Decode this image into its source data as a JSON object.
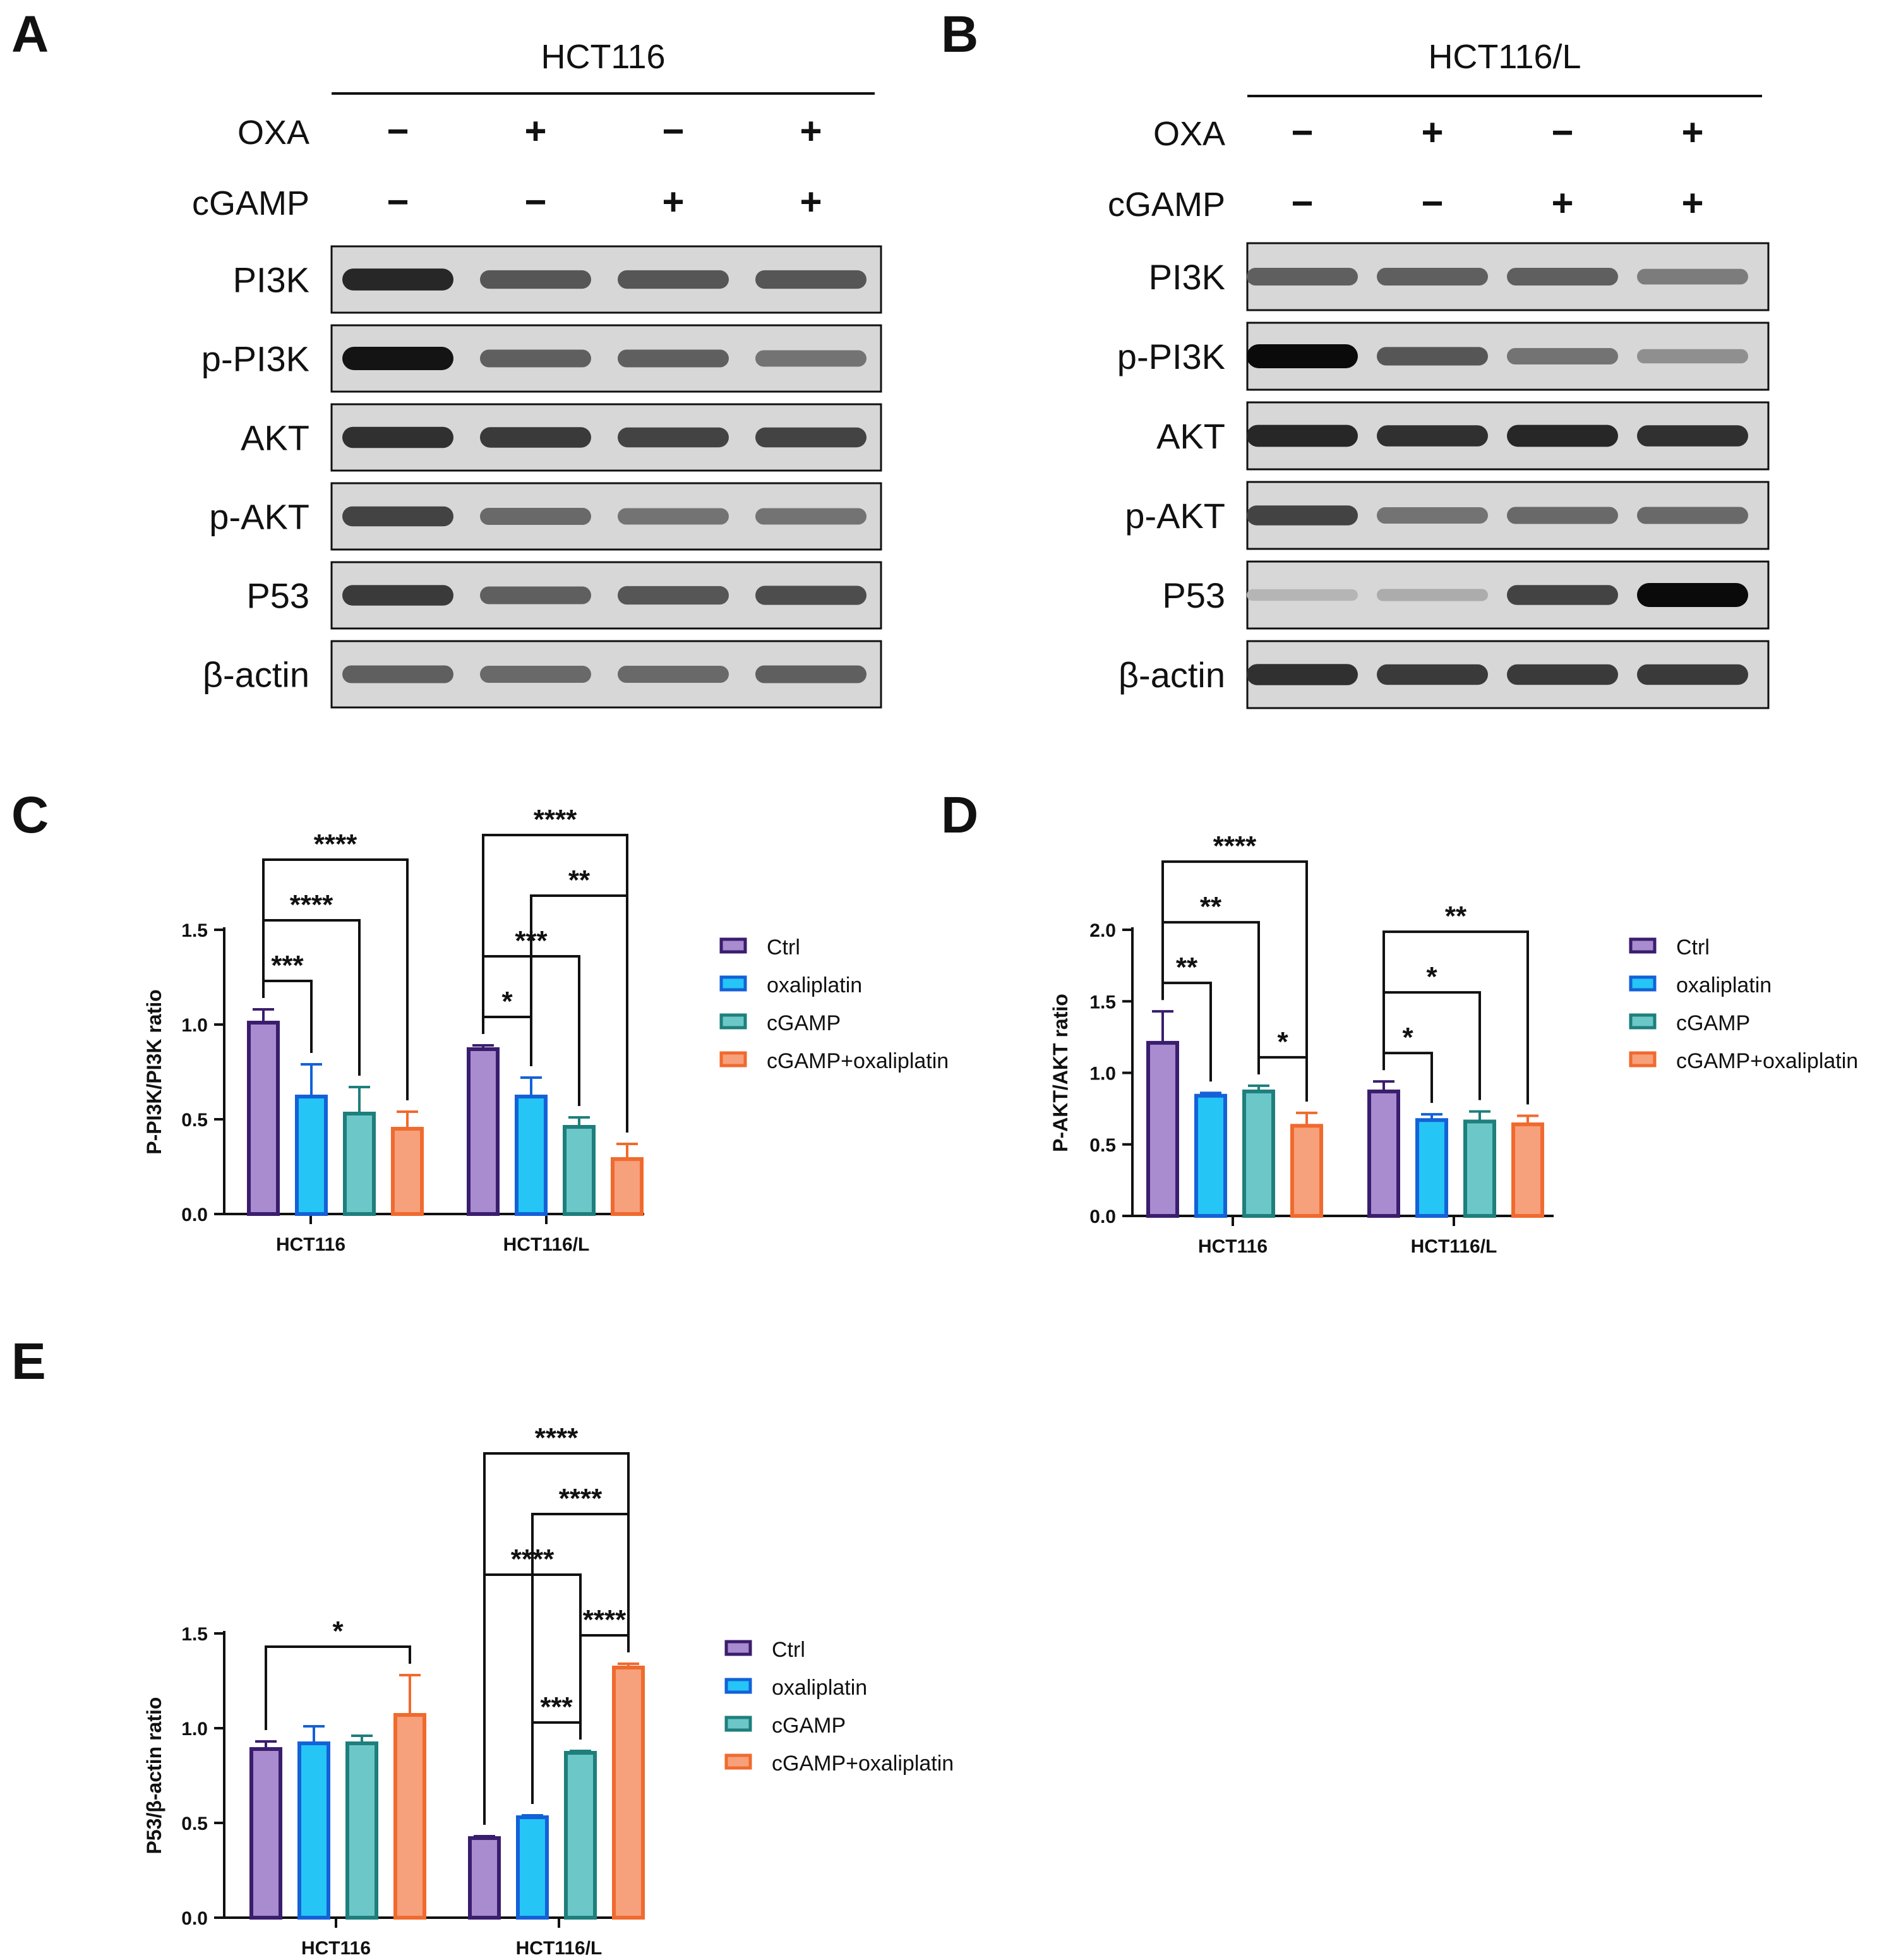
{
  "panels": {
    "A": {
      "letter": "A",
      "cell_line": "HCT116",
      "treatments": [
        {
          "name": "OXA",
          "signs": [
            "−",
            "+",
            "−",
            "+"
          ]
        },
        {
          "name": "cGAMP",
          "signs": [
            "−",
            "−",
            "+",
            "+"
          ]
        }
      ],
      "blots": [
        {
          "label": "PI3K",
          "intensity": [
            0.85,
            0.6,
            0.6,
            0.6
          ]
        },
        {
          "label": "p-PI3K",
          "intensity": [
            0.95,
            0.55,
            0.55,
            0.45
          ]
        },
        {
          "label": "AKT",
          "intensity": [
            0.8,
            0.75,
            0.7,
            0.7
          ]
        },
        {
          "label": "p-AKT",
          "intensity": [
            0.7,
            0.5,
            0.45,
            0.45
          ]
        },
        {
          "label": "P53",
          "intensity": [
            0.75,
            0.55,
            0.6,
            0.65
          ]
        },
        {
          "label": "β-actin",
          "intensity": [
            0.55,
            0.5,
            0.5,
            0.55
          ]
        }
      ]
    },
    "B": {
      "letter": "B",
      "cell_line": "HCT116/L",
      "treatments": [
        {
          "name": "OXA",
          "signs": [
            "−",
            "+",
            "−",
            "+"
          ]
        },
        {
          "name": "cGAMP",
          "signs": [
            "−",
            "−",
            "+",
            "+"
          ]
        }
      ],
      "blots": [
        {
          "label": "PI3K",
          "intensity": [
            0.55,
            0.55,
            0.55,
            0.4
          ]
        },
        {
          "label": "p-PI3K",
          "intensity": [
            1.0,
            0.6,
            0.45,
            0.3
          ]
        },
        {
          "label": "AKT",
          "intensity": [
            0.85,
            0.8,
            0.85,
            0.8
          ]
        },
        {
          "label": "p-AKT",
          "intensity": [
            0.7,
            0.45,
            0.5,
            0.5
          ]
        },
        {
          "label": "P53",
          "intensity": [
            0.1,
            0.15,
            0.7,
            1.0
          ]
        },
        {
          "label": "β-actin",
          "intensity": [
            0.8,
            0.75,
            0.75,
            0.75
          ]
        }
      ]
    }
  },
  "chart_data": [
    {
      "panel": "C",
      "type": "bar",
      "ylabel": "P-PI3K/PI3K ratio",
      "ylim": [
        0,
        1.5
      ],
      "yticks": [
        "0.0",
        "0.5",
        "1.0",
        "1.5"
      ],
      "categories": [
        "HCT116",
        "HCT116/L"
      ],
      "series": [
        {
          "name": "Ctrl",
          "values": [
            1.01,
            0.87
          ],
          "errors": [
            0.07,
            0.02
          ]
        },
        {
          "name": "oxaliplatin",
          "values": [
            0.62,
            0.62
          ],
          "errors": [
            0.17,
            0.1
          ]
        },
        {
          "name": "cGAMP",
          "values": [
            0.53,
            0.46
          ],
          "errors": [
            0.14,
            0.05
          ]
        },
        {
          "name": "cGAMP+oxaliplatin",
          "values": [
            0.45,
            0.29
          ],
          "errors": [
            0.09,
            0.08
          ]
        }
      ],
      "significance": [
        {
          "group": 0,
          "from": 0,
          "to": 1,
          "label": "***"
        },
        {
          "group": 0,
          "from": 0,
          "to": 2,
          "label": "****"
        },
        {
          "group": 0,
          "from": 0,
          "to": 3,
          "label": "****"
        },
        {
          "group": 1,
          "from": 0,
          "to": 1,
          "label": "*"
        },
        {
          "group": 1,
          "from": 1,
          "to": 3,
          "label": "**"
        },
        {
          "group": 1,
          "from": 0,
          "to": 2,
          "label": "***"
        },
        {
          "group": 1,
          "from": 0,
          "to": 3,
          "label": "****"
        }
      ],
      "legend_position": "right"
    },
    {
      "panel": "D",
      "type": "bar",
      "ylabel": "P-AKT/AKT ratio",
      "ylim": [
        0,
        2.0
      ],
      "yticks": [
        "0.0",
        "0.5",
        "1.0",
        "1.5",
        "2.0"
      ],
      "categories": [
        "HCT116",
        "HCT116/L"
      ],
      "series": [
        {
          "name": "Ctrl",
          "values": [
            1.21,
            0.87
          ],
          "errors": [
            0.22,
            0.07
          ]
        },
        {
          "name": "oxaliplatin",
          "values": [
            0.84,
            0.67
          ],
          "errors": [
            0.02,
            0.04
          ]
        },
        {
          "name": "cGAMP",
          "values": [
            0.87,
            0.66
          ],
          "errors": [
            0.04,
            0.07
          ]
        },
        {
          "name": "cGAMP+oxaliplatin",
          "values": [
            0.63,
            0.64
          ],
          "errors": [
            0.09,
            0.06
          ]
        }
      ],
      "significance": [
        {
          "group": 0,
          "from": 0,
          "to": 1,
          "label": "**"
        },
        {
          "group": 0,
          "from": 2,
          "to": 3,
          "label": "*"
        },
        {
          "group": 0,
          "from": 0,
          "to": 2,
          "label": "**"
        },
        {
          "group": 0,
          "from": 0,
          "to": 3,
          "label": "****"
        },
        {
          "group": 1,
          "from": 0,
          "to": 1,
          "label": "*"
        },
        {
          "group": 1,
          "from": 0,
          "to": 2,
          "label": "*"
        },
        {
          "group": 1,
          "from": 0,
          "to": 3,
          "label": "**"
        }
      ],
      "legend_position": "right"
    },
    {
      "panel": "E",
      "type": "bar",
      "ylabel": "P53/β-actin ratio",
      "ylim": [
        0,
        1.5
      ],
      "yticks": [
        "0.0",
        "0.5",
        "1.0",
        "1.5"
      ],
      "categories": [
        "HCT116",
        "HCT116/L"
      ],
      "series": [
        {
          "name": "Ctrl",
          "values": [
            0.89,
            0.42
          ],
          "errors": [
            0.04,
            0.01
          ]
        },
        {
          "name": "oxaliplatin",
          "values": [
            0.92,
            0.53
          ],
          "errors": [
            0.09,
            0.01
          ]
        },
        {
          "name": "cGAMP",
          "values": [
            0.92,
            0.87
          ],
          "errors": [
            0.04,
            0.01
          ]
        },
        {
          "name": "cGAMP+oxaliplatin",
          "values": [
            1.07,
            1.32
          ],
          "errors": [
            0.21,
            0.02
          ]
        }
      ],
      "significance": [
        {
          "group": 0,
          "from": 0,
          "to": 3,
          "label": "*"
        },
        {
          "group": 1,
          "from": 1,
          "to": 2,
          "label": "***"
        },
        {
          "group": 1,
          "from": 2,
          "to": 3,
          "label": "****"
        },
        {
          "group": 1,
          "from": 0,
          "to": 2,
          "label": "****"
        },
        {
          "group": 1,
          "from": 1,
          "to": 3,
          "label": "****"
        },
        {
          "group": 1,
          "from": 0,
          "to": 3,
          "label": "****"
        }
      ],
      "legend_position": "right"
    }
  ],
  "colors": {
    "series_fill": [
      "#a98bd0",
      "#25c5f6",
      "#6cc8c8",
      "#f7a07c"
    ],
    "series_stroke": [
      "#3a1e6e",
      "#1461d8",
      "#1e7f7c",
      "#f06a2e"
    ]
  }
}
